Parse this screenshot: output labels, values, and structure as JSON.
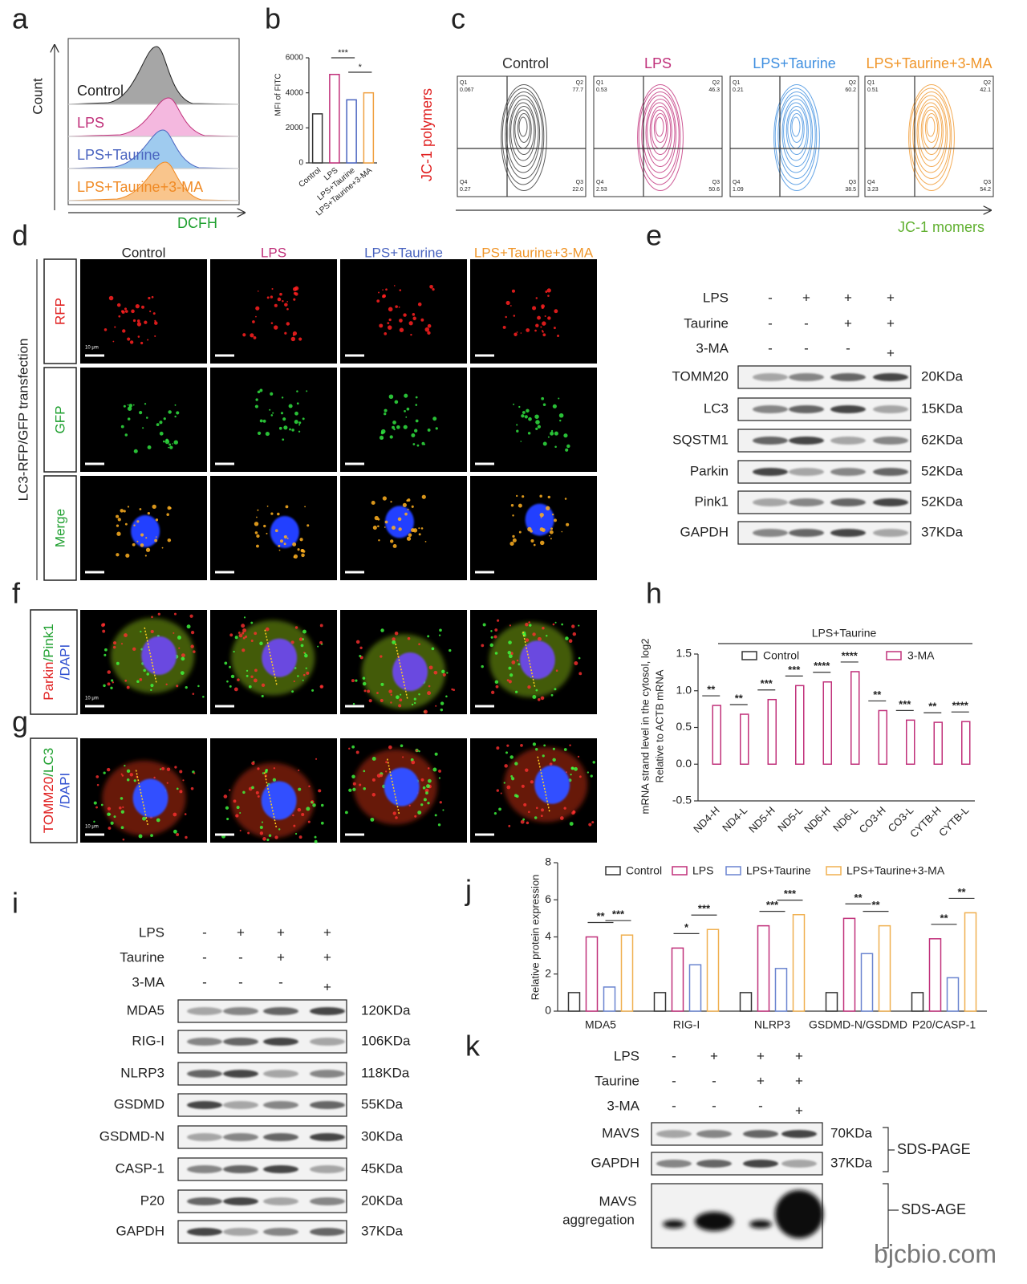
{
  "watermark": "bjcbio.com",
  "a": {
    "label": "a",
    "y_label": "Count",
    "x_label": "DCFH",
    "histograms": [
      {
        "name": "Control",
        "color": "#222222",
        "fill": "#a6a6a6"
      },
      {
        "name": "LPS",
        "color": "#c0307a",
        "fill": "#f4b8df"
      },
      {
        "name": "LPS+Taurine",
        "color": "#4a64c0",
        "fill": "#9fcbef"
      },
      {
        "name": "LPS+Taurine+3-MA",
        "color": "#f08a24",
        "fill": "#f9c58c"
      }
    ]
  },
  "b": {
    "label": "b",
    "type": "bar",
    "y_label": "MFI of FITC",
    "categories": [
      "Control",
      "LPS",
      "LPS+Taurine",
      "LPS+Taurine+3-MA"
    ],
    "values": [
      2800,
      5050,
      3600,
      4000
    ],
    "colors": [
      "#333333",
      "#c0307a",
      "#4a64c0",
      "#f0a040"
    ],
    "ylim": [
      0,
      6000
    ],
    "yticks": [
      0,
      2000,
      4000,
      6000
    ],
    "significance": [
      "***",
      "*"
    ]
  },
  "c": {
    "label": "c",
    "y_label": "JC-1 polymers",
    "x_label": "JC-1 momers",
    "plots": [
      {
        "title": "Control",
        "color": "#333333",
        "quadrants": [
          {
            "label": "Q1",
            "value": "0.067"
          },
          {
            "label": "Q2",
            "value": "77.7"
          },
          {
            "label": "Q4",
            "value": "0.27"
          },
          {
            "label": "Q3",
            "value": "22.0"
          }
        ]
      },
      {
        "title": "LPS",
        "color": "#c0307a",
        "quadrants": [
          {
            "label": "Q1",
            "value": "0.53"
          },
          {
            "label": "Q2",
            "value": "46.3"
          },
          {
            "label": "Q4",
            "value": "2.53"
          },
          {
            "label": "Q3",
            "value": "50.6"
          }
        ]
      },
      {
        "title": "LPS+Taurine",
        "color": "#3f8fe0",
        "quadrants": [
          {
            "label": "Q1",
            "value": "0.21"
          },
          {
            "label": "Q2",
            "value": "60.2"
          },
          {
            "label": "Q4",
            "value": "1.09"
          },
          {
            "label": "Q3",
            "value": "38.5"
          }
        ]
      },
      {
        "title": "LPS+Taurine+3-MA",
        "color": "#f0962a",
        "quadrants": [
          {
            "label": "Q1",
            "value": "0.51"
          },
          {
            "label": "Q2",
            "value": "42.1"
          },
          {
            "label": "Q4",
            "value": "3.23"
          },
          {
            "label": "Q3",
            "value": "54.2"
          }
        ]
      }
    ]
  },
  "d": {
    "label": "d",
    "side_label": "LC3-RFP/GFP transfection",
    "columns": [
      {
        "name": "Control",
        "color": "#222222"
      },
      {
        "name": "LPS",
        "color": "#c0307a"
      },
      {
        "name": "LPS+Taurine",
        "color": "#4a64c0"
      },
      {
        "name": "LPS+Taurine+3-MA",
        "color": "#f0962a"
      }
    ],
    "rows": [
      {
        "label": "RFP",
        "color": "#e02020"
      },
      {
        "label": "GFP",
        "color": "#20a030"
      },
      {
        "label": "Merge",
        "color": "#20a030"
      }
    ],
    "scale_bar": "10 μm"
  },
  "e": {
    "label": "e",
    "conditions": [
      {
        "name": "LPS",
        "signs": [
          "-",
          "+",
          "+",
          "+"
        ]
      },
      {
        "name": "Taurine",
        "signs": [
          "-",
          "-",
          "+",
          "+"
        ]
      },
      {
        "name": "3-MA",
        "signs": [
          "-",
          "-",
          "-",
          "+"
        ]
      }
    ],
    "proteins": [
      {
        "name": "TOMM20",
        "size": "20KDa"
      },
      {
        "name": "LC3",
        "size": "15KDa"
      },
      {
        "name": "SQSTM1",
        "size": "62KDa"
      },
      {
        "name": "Parkin",
        "size": "52KDa"
      },
      {
        "name": "Pink1",
        "size": "52KDa"
      },
      {
        "name": "GAPDH",
        "size": "37KDa"
      }
    ]
  },
  "f": {
    "label": "f",
    "stain": [
      {
        "text": "Parkin",
        "color": "#e02020"
      },
      {
        "text": "/Pink1",
        "color": "#20a030"
      },
      {
        "text": "/DAPI",
        "color": "#3050d0"
      }
    ],
    "scale_bar": "10 μm"
  },
  "g": {
    "label": "g",
    "stain": [
      {
        "text": "TOMM20",
        "color": "#e02020"
      },
      {
        "text": "/LC3",
        "color": "#20a030"
      },
      {
        "text": "/DAPI",
        "color": "#3050d0"
      }
    ],
    "scale_bar": "10 μm"
  },
  "h": {
    "label": "h",
    "type": "bar",
    "header": "LPS+Taurine",
    "y_label": [
      "mRNA strand level in the cytosol, log2",
      "Relative to ACTB mRNA"
    ],
    "categories": [
      "ND4-H",
      "ND4-L",
      "ND5-H",
      "ND5-L",
      "ND6-H",
      "ND6-L",
      "CO3-H",
      "CO3-L",
      "CYTB-H",
      "CYTB-L"
    ],
    "series": [
      {
        "name": "Control",
        "color": "#333333",
        "values": [
          0,
          0,
          0,
          0,
          0,
          0,
          0,
          0,
          0,
          0
        ]
      },
      {
        "name": "3-MA",
        "color": "#c0307a",
        "values": [
          0.8,
          0.68,
          0.88,
          1.07,
          1.12,
          1.26,
          0.73,
          0.6,
          0.57,
          0.58
        ]
      }
    ],
    "ylim": [
      -0.5,
      1.5
    ],
    "yticks": [
      {
        "value": -0.5,
        "label": "-0.5"
      },
      {
        "value": 0,
        "label": "0.0"
      },
      {
        "value": 0.5,
        "label": "0.5"
      },
      {
        "value": 1,
        "label": "1.0"
      },
      {
        "value": 1.5,
        "label": "1.5"
      }
    ],
    "significance": [
      "**",
      "**",
      "***",
      "***",
      "****",
      "****",
      "**",
      "***",
      "**",
      "****"
    ]
  },
  "i": {
    "label": "i",
    "conditions": [
      {
        "name": "LPS",
        "signs": [
          "-",
          "+",
          "+",
          "+"
        ]
      },
      {
        "name": "Taurine",
        "signs": [
          "-",
          "-",
          "+",
          "+"
        ]
      },
      {
        "name": "3-MA",
        "signs": [
          "-",
          "-",
          "-",
          "+"
        ]
      }
    ],
    "proteins": [
      {
        "name": "MDA5",
        "size": "120KDa"
      },
      {
        "name": "RIG-I",
        "size": "106KDa"
      },
      {
        "name": "NLRP3",
        "size": "118KDa"
      },
      {
        "name": "GSDMD",
        "size": "55KDa"
      },
      {
        "name": "GSDMD-N",
        "size": "30KDa"
      },
      {
        "name": "CASP-1",
        "size": "45KDa"
      },
      {
        "name": "P20",
        "size": "20KDa"
      },
      {
        "name": "GAPDH",
        "size": "37KDa"
      }
    ]
  },
  "j": {
    "label": "j",
    "type": "bar",
    "y_label": "Relative protein expression",
    "categories": [
      "MDA5",
      "RIG-I",
      "NLRP3",
      "GSDMD-N/GSDMD",
      "P20/CASP-1"
    ],
    "series": [
      {
        "name": "Control",
        "color": "#333333",
        "values": [
          1,
          1,
          1,
          1,
          1
        ]
      },
      {
        "name": "LPS",
        "color": "#c0307a",
        "values": [
          4,
          3.4,
          4.6,
          5,
          3.9
        ]
      },
      {
        "name": "LPS+Taurine",
        "color": "#6a84d0",
        "values": [
          1.3,
          2.5,
          2.3,
          3.1,
          1.8
        ]
      },
      {
        "name": "LPS+Taurine+3-MA",
        "color": "#f0b050",
        "values": [
          4.1,
          4.4,
          5.2,
          4.6,
          5.3
        ]
      }
    ],
    "ylim": [
      0,
      8
    ],
    "yticks": [
      0,
      2,
      4,
      6,
      8
    ],
    "significance": [
      [
        "**",
        "***"
      ],
      [
        "*",
        "***"
      ],
      [
        "***",
        "***"
      ],
      [
        "**",
        "**"
      ],
      [
        "**",
        "**"
      ]
    ]
  },
  "k": {
    "label": "k",
    "conditions": [
      {
        "name": "LPS",
        "signs": [
          "-",
          "+",
          "+",
          "+"
        ]
      },
      {
        "name": "Taurine",
        "signs": [
          "-",
          "-",
          "+",
          "+"
        ]
      },
      {
        "name": "3-MA",
        "signs": [
          "-",
          "-",
          "-",
          "+"
        ]
      }
    ],
    "proteins": [
      {
        "name": "MAVS",
        "size": "70KDa"
      },
      {
        "name": "GAPDH",
        "size": "37KDa"
      }
    ],
    "aggregation": [
      "MAVS",
      "aggregation"
    ],
    "methods": [
      "SDS-PAGE",
      "SDS-AGE"
    ]
  }
}
